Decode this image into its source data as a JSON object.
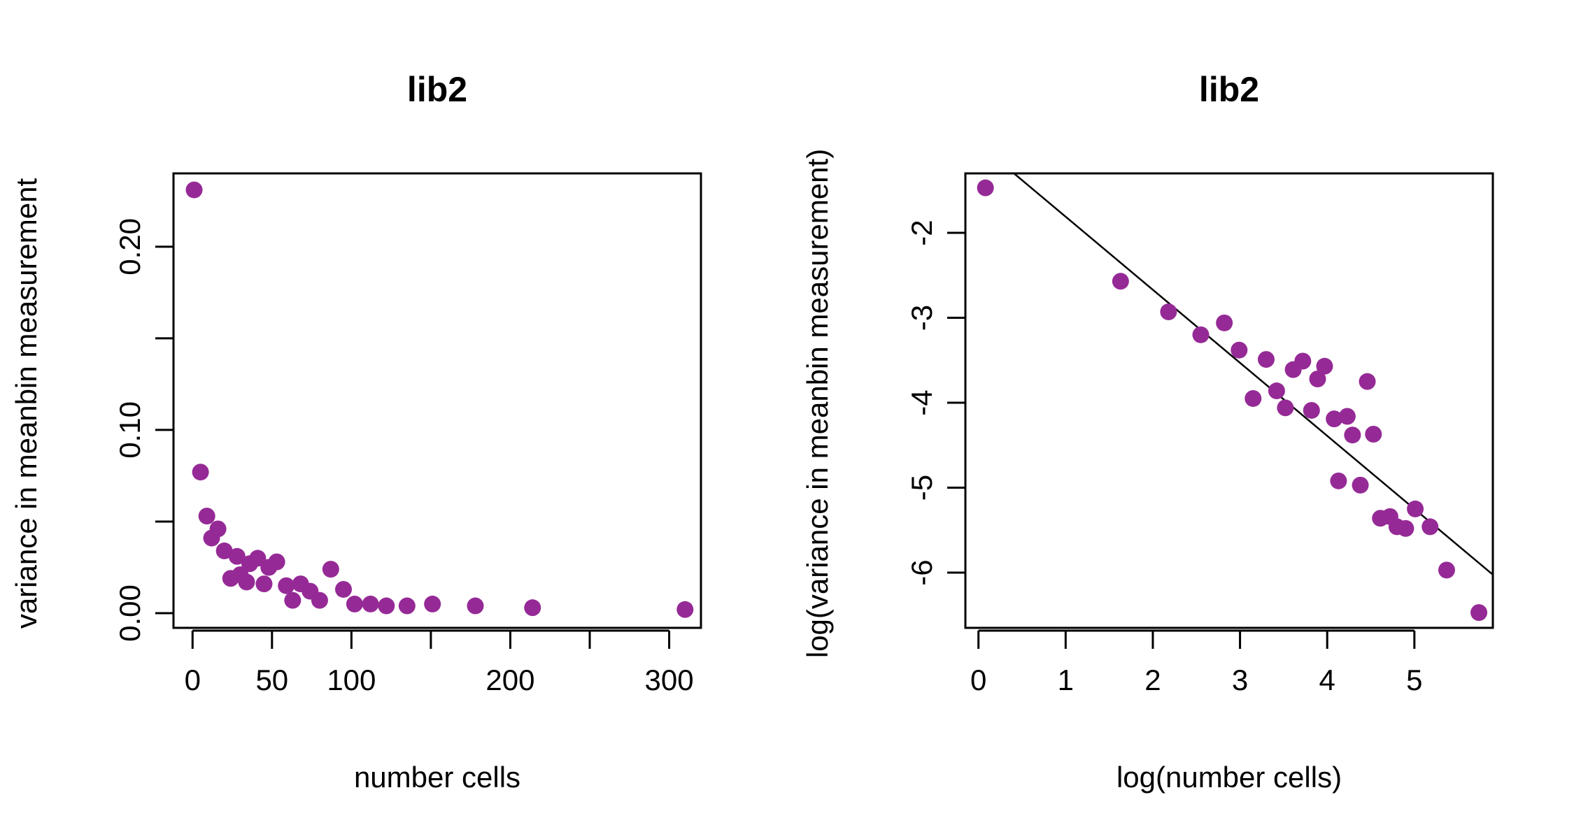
{
  "chart_data": [
    {
      "type": "scatter",
      "title": "lib2",
      "xlabel": "number cells",
      "ylabel": "variance in meanbin measurement",
      "xlim": [
        -12,
        320
      ],
      "ylim": [
        -0.008,
        0.24
      ],
      "xticks": [
        0,
        50,
        100,
        150,
        200,
        250,
        300
      ],
      "xtick_labels": [
        "0",
        "50",
        "100",
        "",
        "200",
        "",
        "300"
      ],
      "yticks": [
        0.0,
        0.05,
        0.1,
        0.15,
        0.2
      ],
      "ytick_labels": [
        "0.00",
        "",
        "0.10",
        "",
        "0.20"
      ],
      "color": "#952a96",
      "points": [
        [
          1,
          0.231
        ],
        [
          5,
          0.077
        ],
        [
          9,
          0.053
        ],
        [
          12,
          0.041
        ],
        [
          16,
          0.046
        ],
        [
          20,
          0.034
        ],
        [
          24,
          0.019
        ],
        [
          28,
          0.031
        ],
        [
          30,
          0.021
        ],
        [
          34,
          0.017
        ],
        [
          36,
          0.027
        ],
        [
          41,
          0.03
        ],
        [
          45,
          0.016
        ],
        [
          48,
          0.025
        ],
        [
          53,
          0.028
        ],
        [
          59,
          0.015
        ],
        [
          63,
          0.007
        ],
        [
          68,
          0.016
        ],
        [
          74,
          0.012
        ],
        [
          80,
          0.007
        ],
        [
          87,
          0.024
        ],
        [
          95,
          0.013
        ],
        [
          102,
          0.005
        ],
        [
          112,
          0.005
        ],
        [
          122,
          0.004
        ],
        [
          135,
          0.004
        ],
        [
          151,
          0.005
        ],
        [
          178,
          0.004
        ],
        [
          214,
          0.003
        ],
        [
          310,
          0.002
        ]
      ]
    },
    {
      "type": "scatter",
      "title": "lib2",
      "xlabel": "log(number cells)",
      "ylabel": "log(variance in meanbin measurement)",
      "xlim": [
        -0.15,
        5.9
      ],
      "ylim": [
        -6.65,
        -1.3
      ],
      "xticks": [
        0,
        1,
        2,
        3,
        4,
        5
      ],
      "xtick_labels": [
        "0",
        "1",
        "2",
        "3",
        "4",
        "5"
      ],
      "yticks": [
        -6,
        -5,
        -4,
        -3,
        -2
      ],
      "ytick_labels": [
        "-6",
        "-5",
        "-4",
        "-3",
        "-2"
      ],
      "color": "#952a96",
      "fit_line": {
        "intercept": -0.95,
        "slope": -0.86
      },
      "points": [
        [
          0.08,
          -1.47
        ],
        [
          1.63,
          -2.57
        ],
        [
          2.18,
          -2.93
        ],
        [
          2.55,
          -3.2
        ],
        [
          2.82,
          -3.06
        ],
        [
          2.99,
          -3.38
        ],
        [
          3.15,
          -3.95
        ],
        [
          3.3,
          -3.49
        ],
        [
          3.42,
          -3.86
        ],
        [
          3.52,
          -4.06
        ],
        [
          3.61,
          -3.61
        ],
        [
          3.72,
          -3.51
        ],
        [
          3.82,
          -4.09
        ],
        [
          3.89,
          -3.72
        ],
        [
          3.97,
          -3.57
        ],
        [
          4.08,
          -4.19
        ],
        [
          4.13,
          -4.92
        ],
        [
          4.23,
          -4.16
        ],
        [
          4.29,
          -4.38
        ],
        [
          4.38,
          -4.97
        ],
        [
          4.46,
          -3.75
        ],
        [
          4.53,
          -4.37
        ],
        [
          4.61,
          -5.36
        ],
        [
          4.72,
          -5.34
        ],
        [
          4.8,
          -5.46
        ],
        [
          4.9,
          -5.48
        ],
        [
          5.01,
          -5.25
        ],
        [
          5.18,
          -5.46
        ],
        [
          5.37,
          -5.97
        ],
        [
          5.74,
          -6.47
        ]
      ]
    }
  ]
}
